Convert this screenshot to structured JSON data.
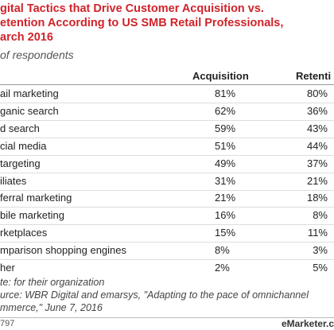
{
  "header": {
    "title_lines": [
      "gital Tactics that Drive Customer Acquisition vs.",
      "etention According to US SMB Retail Professionals,",
      "arch 2016"
    ],
    "subtitle": "of respondents"
  },
  "table": {
    "columns": [
      "Acquisition",
      "Retenti"
    ],
    "rows": [
      [
        "ail marketing",
        "81%",
        "80%"
      ],
      [
        "ganic search",
        "62%",
        "36%"
      ],
      [
        "d search",
        "59%",
        "43%"
      ],
      [
        "cial media",
        "51%",
        "44%"
      ],
      [
        "targeting",
        "49%",
        "37%"
      ],
      [
        "iliates",
        "31%",
        "21%"
      ],
      [
        "ferral marketing",
        "21%",
        "18%"
      ],
      [
        "bile marketing",
        "16%",
        "8%"
      ],
      [
        "rketplaces",
        "15%",
        "11%"
      ],
      [
        "mparison shopping engines",
        "8%",
        "3%"
      ],
      [
        "her",
        "2%",
        "5%"
      ]
    ]
  },
  "notes": [
    "te: for their organization",
    "urce: WBR Digital and emarsys, \"Adapting to the pace of omnichannel",
    "mmerce,\" June 7, 2016"
  ],
  "footer": {
    "id": "797",
    "brand": "eMarketer.c"
  }
}
